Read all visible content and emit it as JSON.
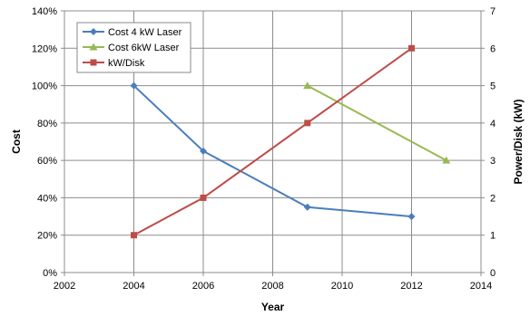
{
  "chart_data": {
    "type": "line",
    "xlabel": "Year",
    "ylabel_left": "Cost",
    "ylabel_right": "Power/Disk (kW)",
    "xlim": [
      2002,
      2014
    ],
    "x_ticks": [
      "2002",
      "2004",
      "2006",
      "2008",
      "2010",
      "2012",
      "2014"
    ],
    "ylim_left": [
      0,
      140
    ],
    "y_ticks_left": [
      "0%",
      "20%",
      "40%",
      "60%",
      "80%",
      "100%",
      "120%",
      "140%"
    ],
    "ylim_right": [
      0,
      7
    ],
    "y_ticks_right": [
      "0",
      "1",
      "2",
      "3",
      "4",
      "5",
      "6",
      "7"
    ],
    "grid": true,
    "legend_position": "top-left",
    "series": [
      {
        "name": "Cost 4 kW Laser",
        "axis": "left",
        "color": "#4A7EBB",
        "marker": "diamond",
        "x": [
          2004,
          2006,
          2009,
          2012
        ],
        "y": [
          100,
          65,
          35,
          30
        ]
      },
      {
        "name": "Cost 6kW Laser",
        "axis": "left",
        "color": "#98B954",
        "marker": "triangle",
        "x": [
          2009,
          2013
        ],
        "y": [
          100,
          60
        ]
      },
      {
        "name": "kW/Disk",
        "axis": "right",
        "color": "#BE4B48",
        "marker": "square",
        "x": [
          2004,
          2006,
          2009,
          2012
        ],
        "y": [
          1,
          2,
          4,
          6
        ]
      }
    ]
  }
}
